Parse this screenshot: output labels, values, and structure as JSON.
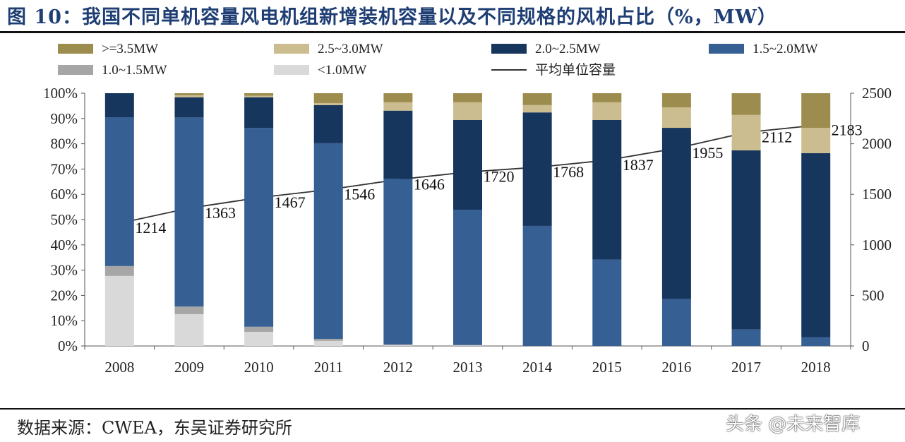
{
  "title": "图 10：我国不同单机容量风电机组新增装机容量以及不同规格的风机占比（%，MW）",
  "source": "数据来源：CWEA，东吴证券研究所",
  "watermark": "头条 @未来智库",
  "chart_data": {
    "type": "bar",
    "stacked": true,
    "categories": [
      "2008",
      "2009",
      "2010",
      "2011",
      "2012",
      "2013",
      "2014",
      "2015",
      "2016",
      "2017",
      "2018"
    ],
    "series": [
      {
        "name": "<1.0MW",
        "color": "#d9d9d9",
        "values": [
          27.7,
          12.6,
          5.6,
          2.0,
          0.3,
          0.2,
          0,
          0,
          0,
          0,
          0
        ]
      },
      {
        "name": "1.0~1.5MW",
        "color": "#a6a6a6",
        "values": [
          3.9,
          3.0,
          2.0,
          0.8,
          0.3,
          0.2,
          0,
          0,
          0,
          0,
          0
        ]
      },
      {
        "name": "1.5~2.0MW",
        "color": "#366094",
        "values": [
          58.9,
          74.8,
          78.7,
          77.4,
          65.5,
          53.5,
          47.5,
          34.2,
          18.6,
          6.5,
          3.5
        ]
      },
      {
        "name": "2.0~2.5MW",
        "color": "#17365d",
        "values": [
          9.5,
          8.0,
          12.1,
          15.1,
          27.0,
          35.5,
          44.9,
          55.2,
          67.7,
          70.9,
          72.8
        ]
      },
      {
        "name": "2.5~3.0MW",
        "color": "#cbbd8f",
        "values": [
          0,
          0.8,
          0.6,
          0.8,
          3.3,
          7.0,
          2.9,
          7.0,
          8.1,
          14.0,
          10.0
        ]
      },
      {
        "name": ">=3.5MW",
        "color": "#9c8c4e",
        "values": [
          0,
          0.8,
          1.0,
          3.9,
          3.6,
          3.6,
          4.7,
          3.6,
          5.6,
          8.6,
          13.7
        ]
      }
    ],
    "line": {
      "name": "平均单位容量",
      "color": "#333333",
      "axis": "right",
      "values": [
        1214,
        1363,
        1467,
        1546,
        1646,
        1720,
        1768,
        1837,
        1955,
        2112,
        2183
      ]
    },
    "legend_order": [
      ">=3.5MW",
      "2.5~3.0MW",
      "2.0~2.5MW",
      "1.5~2.0MW",
      "1.0~1.5MW",
      "<1.0MW",
      "平均单位容量"
    ],
    "legend_position": "top",
    "y_left": {
      "ylim": [
        0,
        100
      ],
      "ticks": [
        "0%",
        "10%",
        "20%",
        "30%",
        "40%",
        "50%",
        "60%",
        "70%",
        "80%",
        "90%",
        "100%"
      ]
    },
    "y_right": {
      "ylim": [
        0,
        2500
      ],
      "ticks": [
        "0",
        "500",
        "1000",
        "1500",
        "2000",
        "2500"
      ]
    },
    "grid": false,
    "xlabel": "",
    "ylabel": ""
  }
}
